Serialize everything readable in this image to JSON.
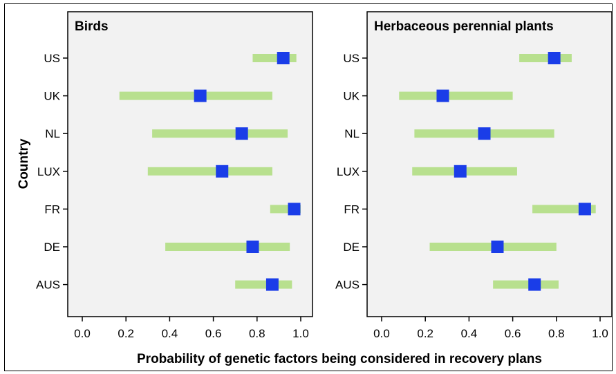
{
  "chart_data": {
    "type": "dot-interval",
    "ylabel": "Country",
    "xlabel": "Probability of genetic factors being considered in recovery plans",
    "xlim": [
      0.0,
      1.0
    ],
    "x_ticks": [
      "0.0",
      "0.2",
      "0.4",
      "0.6",
      "0.8",
      "1.0"
    ],
    "categories": [
      "US",
      "UK",
      "NL",
      "LUX",
      "FR",
      "DE",
      "AUS"
    ],
    "colors": {
      "interval": "#b8e08e",
      "point": "#1a3de8",
      "panel_bg": "#f2f2f2"
    },
    "panels": [
      {
        "title": "Birds",
        "points": [
          {
            "country": "US",
            "estimate": 0.92,
            "lower": 0.78,
            "upper": 0.98
          },
          {
            "country": "UK",
            "estimate": 0.54,
            "lower": 0.17,
            "upper": 0.87
          },
          {
            "country": "NL",
            "estimate": 0.73,
            "lower": 0.32,
            "upper": 0.94
          },
          {
            "country": "LUX",
            "estimate": 0.64,
            "lower": 0.3,
            "upper": 0.87
          },
          {
            "country": "FR",
            "estimate": 0.97,
            "lower": 0.86,
            "upper": 1.0
          },
          {
            "country": "DE",
            "estimate": 0.78,
            "lower": 0.38,
            "upper": 0.95
          },
          {
            "country": "AUS",
            "estimate": 0.87,
            "lower": 0.7,
            "upper": 0.96
          }
        ]
      },
      {
        "title": "Herbaceous perennial plants",
        "points": [
          {
            "country": "US",
            "estimate": 0.79,
            "lower": 0.63,
            "upper": 0.87
          },
          {
            "country": "UK",
            "estimate": 0.28,
            "lower": 0.08,
            "upper": 0.6
          },
          {
            "country": "NL",
            "estimate": 0.47,
            "lower": 0.15,
            "upper": 0.79
          },
          {
            "country": "LUX",
            "estimate": 0.36,
            "lower": 0.14,
            "upper": 0.62
          },
          {
            "country": "FR",
            "estimate": 0.93,
            "lower": 0.69,
            "upper": 0.98
          },
          {
            "country": "DE",
            "estimate": 0.53,
            "lower": 0.22,
            "upper": 0.8
          },
          {
            "country": "AUS",
            "estimate": 0.7,
            "lower": 0.51,
            "upper": 0.81
          }
        ]
      }
    ]
  }
}
